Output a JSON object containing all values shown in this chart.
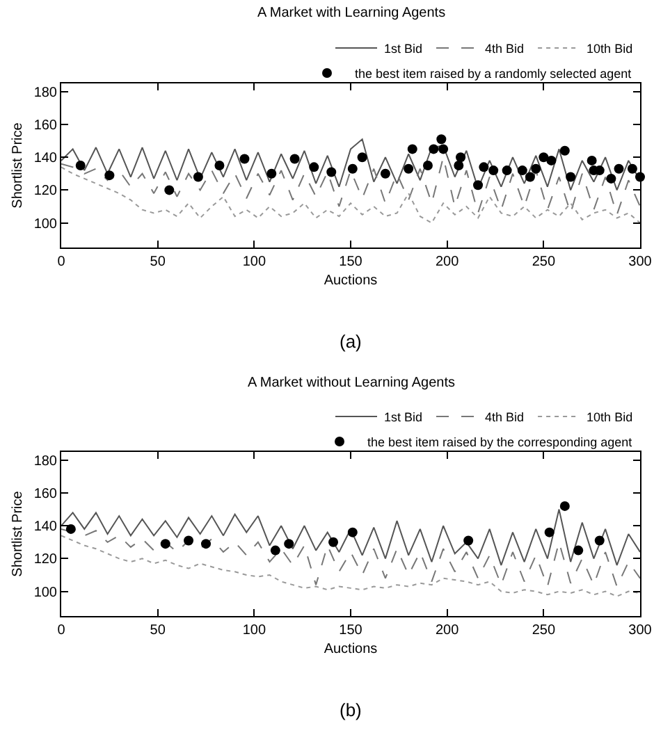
{
  "chart_data": [
    {
      "type": "line",
      "title": "A Market with Learning Agents",
      "xlabel": "Auctions",
      "ylabel": "Shortlist Price",
      "annotations": [
        "(a)"
      ],
      "xlim": [
        0,
        300
      ],
      "xticks": [
        0,
        50,
        100,
        150,
        200,
        250,
        300
      ],
      "ylim": [
        85,
        185
      ],
      "yticks": [
        100,
        120,
        140,
        160,
        180
      ],
      "grid": false,
      "legend": "top right",
      "x": [
        0,
        6,
        12,
        18,
        24,
        30,
        36,
        42,
        48,
        54,
        60,
        66,
        72,
        78,
        84,
        90,
        96,
        102,
        108,
        114,
        120,
        126,
        132,
        138,
        144,
        150,
        156,
        162,
        168,
        174,
        180,
        186,
        192,
        198,
        204,
        210,
        216,
        222,
        228,
        234,
        240,
        246,
        252,
        258,
        264,
        270,
        276,
        282,
        288,
        294,
        300
      ],
      "series": [
        {
          "name": "1st Bid",
          "color": "#555555",
          "line_style": "solid",
          "values": [
            138,
            145,
            132,
            146,
            130,
            145,
            128,
            146,
            127,
            144,
            126,
            145,
            127,
            143,
            128,
            145,
            126,
            143,
            125,
            142,
            127,
            144,
            124,
            141,
            122,
            145,
            151,
            125,
            140,
            124,
            142,
            126,
            146,
            147,
            128,
            144,
            121,
            138,
            122,
            140,
            124,
            141,
            122,
            145,
            120,
            138,
            125,
            140,
            120,
            138,
            126
          ]
        },
        {
          "name": "4th Bid",
          "color": "#777777",
          "line_style": "dashed",
          "values": [
            136,
            134,
            130,
            133,
            126,
            132,
            122,
            130,
            118,
            131,
            116,
            130,
            120,
            132,
            118,
            130,
            115,
            130,
            117,
            132,
            114,
            130,
            116,
            131,
            110,
            132,
            115,
            133,
            112,
            130,
            114,
            133,
            112,
            140,
            110,
            132,
            106,
            128,
            108,
            130,
            110,
            132,
            108,
            128,
            106,
            130,
            108,
            128,
            105,
            126,
            110
          ]
        },
        {
          "name": "10th Bid",
          "color": "#999999",
          "line_style": "dotted",
          "values": [
            134,
            130,
            127,
            124,
            121,
            118,
            114,
            108,
            106,
            108,
            104,
            112,
            103,
            110,
            116,
            104,
            108,
            103,
            110,
            104,
            106,
            112,
            103,
            108,
            104,
            112,
            105,
            110,
            104,
            106,
            118,
            104,
            100,
            112,
            105,
            110,
            103,
            116,
            106,
            104,
            110,
            103,
            108,
            104,
            112,
            102,
            106,
            108,
            103,
            106,
            100
          ]
        },
        {
          "name": "the best item raised by a randomly selected agent",
          "type": "scatter",
          "marker": "circle",
          "color": "#000000",
          "x": [
            10,
            25,
            56,
            71,
            82,
            95,
            109,
            121,
            131,
            140,
            151,
            156,
            168,
            180,
            182,
            190,
            193,
            197,
            198,
            206,
            207,
            216,
            219,
            224,
            231,
            239,
            243,
            246,
            250,
            254,
            261,
            264,
            275,
            276,
            279,
            285,
            289,
            296,
            300
          ],
          "values": [
            135,
            129,
            120,
            128,
            135,
            139,
            130,
            139,
            134,
            131,
            133,
            140,
            130,
            133,
            145,
            135,
            145,
            151,
            145,
            135,
            140,
            123,
            134,
            132,
            132,
            132,
            128,
            133,
            140,
            138,
            144,
            128,
            138,
            132,
            132,
            127,
            133,
            133,
            128
          ]
        }
      ]
    },
    {
      "type": "line",
      "title": "A Market without Learning Agents",
      "xlabel": "Auctions",
      "ylabel": "Shortlist Price",
      "annotations": [
        "(b)"
      ],
      "xlim": [
        0,
        300
      ],
      "xticks": [
        0,
        50,
        100,
        150,
        200,
        250,
        300
      ],
      "ylim": [
        85,
        185
      ],
      "yticks": [
        100,
        120,
        140,
        160,
        180
      ],
      "grid": false,
      "legend": "top right",
      "x": [
        0,
        6,
        12,
        18,
        24,
        30,
        36,
        42,
        48,
        54,
        60,
        66,
        72,
        78,
        84,
        90,
        96,
        102,
        108,
        114,
        120,
        126,
        132,
        138,
        144,
        150,
        156,
        162,
        168,
        174,
        180,
        186,
        192,
        198,
        204,
        210,
        216,
        222,
        228,
        234,
        240,
        246,
        252,
        258,
        264,
        270,
        276,
        282,
        288,
        294,
        300
      ],
      "series": [
        {
          "name": "1st Bid",
          "color": "#555555",
          "line_style": "solid",
          "values": [
            140,
            148,
            138,
            148,
            135,
            146,
            134,
            144,
            134,
            143,
            133,
            145,
            135,
            146,
            134,
            147,
            136,
            146,
            128,
            140,
            126,
            140,
            125,
            136,
            124,
            138,
            122,
            139,
            120,
            143,
            122,
            138,
            118,
            140,
            123,
            130,
            120,
            138,
            116,
            136,
            118,
            138,
            120,
            150,
            118,
            142,
            120,
            138,
            116,
            135,
            124
          ]
        },
        {
          "name": "4th Bid",
          "color": "#777777",
          "line_style": "dashed",
          "values": [
            138,
            136,
            134,
            137,
            130,
            134,
            127,
            132,
            125,
            130,
            124,
            131,
            126,
            132,
            124,
            130,
            122,
            130,
            118,
            126,
            116,
            128,
            104,
            128,
            112,
            124,
            110,
            126,
            108,
            126,
            110,
            124,
            106,
            126,
            112,
            124,
            108,
            122,
            104,
            124,
            106,
            122,
            103,
            130,
            105,
            120,
            104,
            124,
            103,
            118,
            108
          ]
        },
        {
          "name": "10th Bid",
          "color": "#999999",
          "line_style": "dotted",
          "values": [
            134,
            131,
            128,
            126,
            123,
            120,
            118,
            120,
            117,
            119,
            116,
            114,
            117,
            115,
            113,
            112,
            110,
            109,
            110,
            106,
            104,
            102,
            103,
            101,
            103,
            102,
            101,
            103,
            102,
            104,
            103,
            105,
            104,
            108,
            107,
            106,
            104,
            106,
            100,
            99,
            101,
            100,
            98,
            100,
            99,
            101,
            98,
            100,
            97,
            100,
            99
          ]
        },
        {
          "name": "the best item raised by the corresponding agent",
          "type": "scatter",
          "marker": "circle",
          "color": "#000000",
          "x": [
            5,
            54,
            66,
            75,
            111,
            118,
            141,
            151,
            211,
            253,
            261,
            268,
            279
          ],
          "values": [
            138,
            129,
            131,
            129,
            125,
            129,
            130,
            136,
            131,
            136,
            152,
            125,
            131
          ]
        }
      ]
    }
  ]
}
